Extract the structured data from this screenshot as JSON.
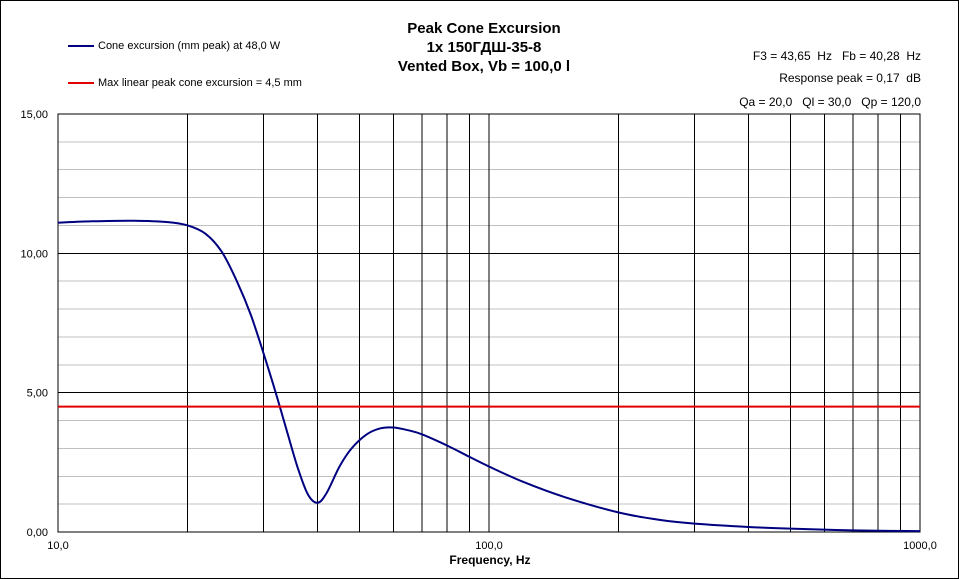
{
  "chart_data": {
    "type": "line",
    "title": [
      "Peak Cone Excursion",
      "1x 150ГДШ-35-8",
      "Vented Box, Vb = 100,0 l"
    ],
    "xlabel": "Frequency, Hz",
    "ylabel": "",
    "x_scale": "log",
    "xlim": [
      10,
      1000
    ],
    "ylim": [
      0,
      15
    ],
    "x_ticks": [
      "10,0",
      "100,0",
      "1000,0"
    ],
    "y_ticks": [
      "0,00",
      "5,00",
      "10,00",
      "15,00"
    ],
    "y_tick_values": [
      0,
      5,
      10,
      15
    ],
    "x_grid": [
      20,
      30,
      40,
      50,
      60,
      70,
      80,
      90,
      100,
      200,
      300,
      400,
      500,
      600,
      700,
      800,
      900
    ],
    "y_grid_step": 1,
    "series": [
      {
        "name": "Cone excursion (mm peak) at 48,0 W",
        "color": "#000080",
        "x": [
          10,
          12,
          15,
          18,
          20,
          22,
          24,
          26,
          28,
          30,
          32,
          34,
          36,
          38,
          40,
          42,
          45,
          48,
          52,
          56,
          60,
          65,
          70,
          80,
          90,
          100,
          120,
          150,
          200,
          250,
          300,
          400,
          500,
          700,
          1000
        ],
        "values": [
          11.1,
          11.15,
          11.17,
          11.12,
          11.0,
          10.7,
          10.05,
          9.0,
          7.8,
          6.4,
          5.0,
          3.6,
          2.3,
          1.35,
          1.05,
          1.4,
          2.35,
          3.0,
          3.5,
          3.72,
          3.75,
          3.65,
          3.5,
          3.1,
          2.7,
          2.35,
          1.8,
          1.25,
          0.7,
          0.43,
          0.3,
          0.18,
          0.12,
          0.06,
          0.03
        ]
      },
      {
        "name": "Max linear peak cone excursion = 4,5 mm",
        "color": "#e00000",
        "x": [
          10,
          1000
        ],
        "values": [
          4.5,
          4.5
        ]
      }
    ]
  },
  "info": {
    "line1": "F3 = 43,65  Hz   Fb = 40,28  Hz",
    "line2": "Response peak = 0,17  dB",
    "line3": "Qa = 20,0   Ql = 30,0   Qp = 120,0"
  }
}
